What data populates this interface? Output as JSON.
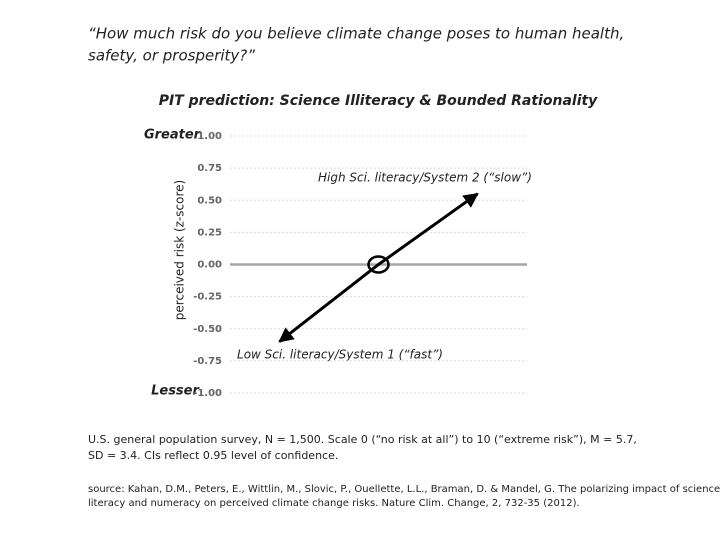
{
  "question": [
    "“How much risk do you believe climate change poses to human health,",
    "safety, or prosperity?”"
  ],
  "chart_data": {
    "type": "line",
    "title": "PIT prediction: Science Illiteracy & Bounded Rationality",
    "ylabel": "perceived risk (z-score)",
    "top_label": "Greater",
    "bottom_label": "Lesser",
    "annotations": [
      "High Sci. literacy/System 2 (“slow”)",
      "Low Sci. literacy/System 1 (“fast”)"
    ],
    "categories": [
      null,
      null,
      null
    ],
    "series": [
      {
        "name": null,
        "color": "#000000",
        "values": [
          -0.6,
          0,
          0.55
        ]
      }
    ],
    "ylim": [
      -1,
      1
    ],
    "yticks": [
      {
        "value": -1,
        "label": "-1.00"
      },
      {
        "value": -0.75,
        "label": "-0.75"
      },
      {
        "value": -0.5,
        "label": "-0.50"
      },
      {
        "value": -0.25,
        "label": "-0.25"
      },
      {
        "value": 0,
        "label": "0.00"
      },
      {
        "value": 0.25,
        "label": "0.25"
      },
      {
        "value": 0.5,
        "label": "0.50"
      },
      {
        "value": 0.75,
        "label": "0.75"
      },
      {
        "value": 1,
        "label": "1.00"
      }
    ],
    "grid": true,
    "zero_line_color": "#a6a6a6",
    "title_color": "#c00000"
  },
  "caption": [
    "U.S. general population survey, N = 1,500. Scale 0 (“no risk at all”) to 10 (“extreme risk”), M = 5.7,",
    "SD = 3.4. CIs reflect 0.95 level of confidence."
  ],
  "source": [
    "source: Kahan, D.M., Peters, E., Wittlin, M., Slovic, P., Ouellette, L.L., Braman, D. & Mandel, G. The polarizing impact of science",
    "literacy and numeracy on perceived climate change risks. Nature Clim. Change, 2, 732-35 (2012)."
  ]
}
